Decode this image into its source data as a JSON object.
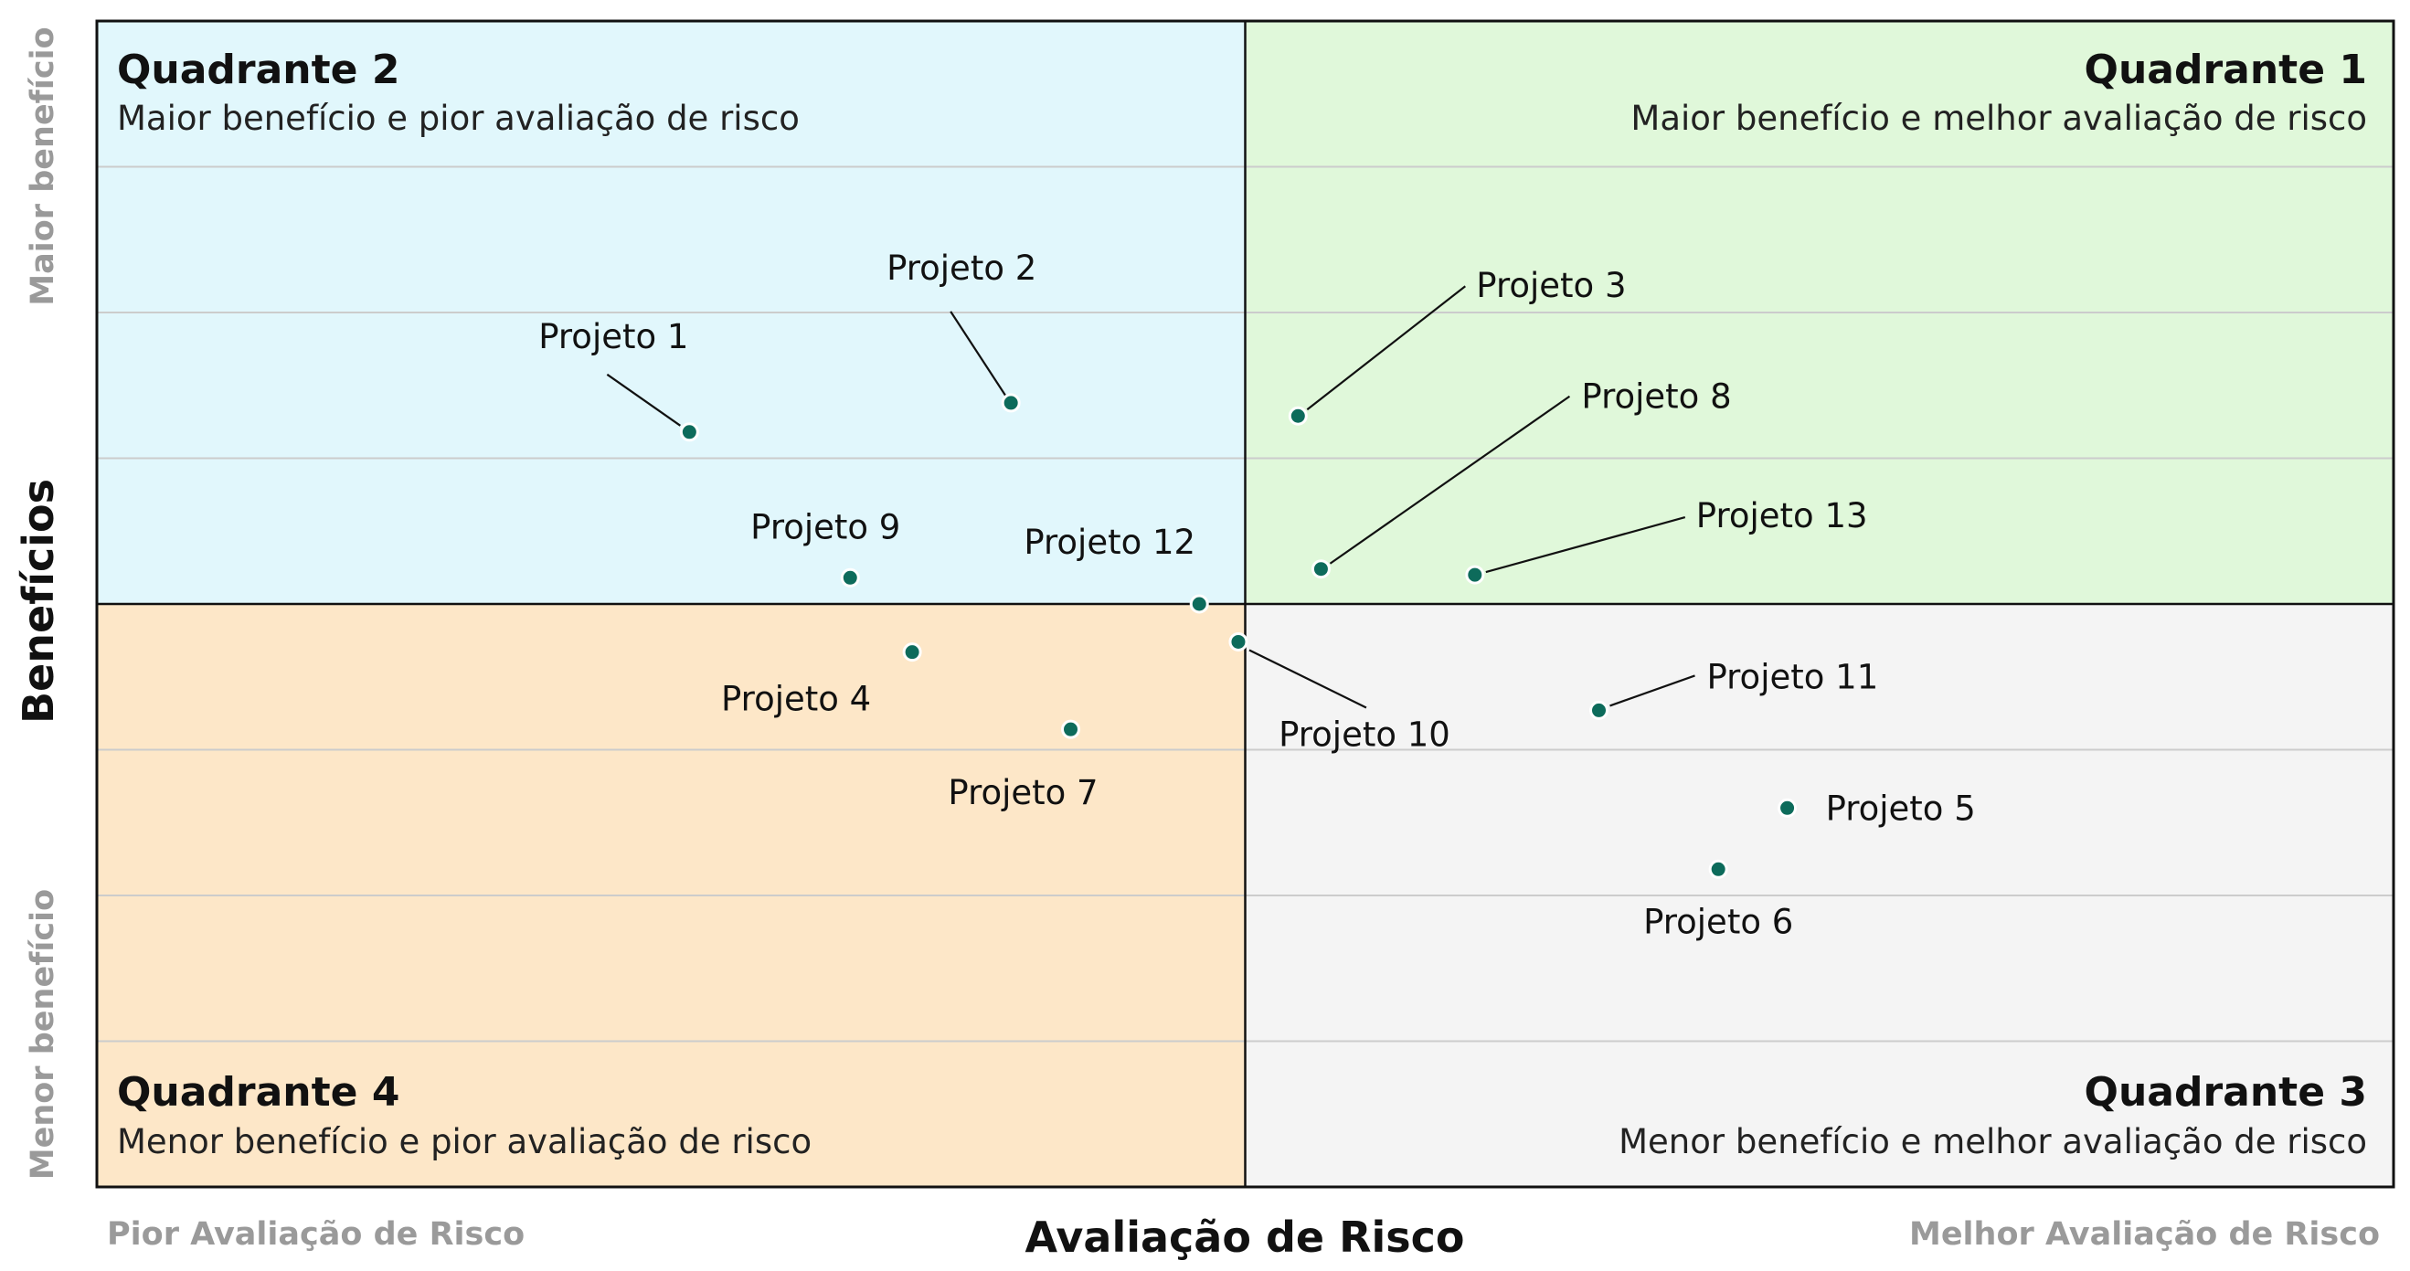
{
  "chart_data": {
    "type": "scatter",
    "xlabel": "Avaliação de Risco",
    "ylabel": "Benefícios",
    "x_low_label": "Pior Avaliação de Risco",
    "x_high_label": "Melhor Avaliação de Risco",
    "y_low_label": "Menor benefício",
    "y_high_label": "Maior benefício",
    "xlim": [
      0,
      10
    ],
    "ylim": [
      0,
      8
    ],
    "x_split": 5,
    "y_split": 4,
    "grid": "horizontal",
    "colors": {
      "q1": "#e0f8da",
      "q2": "#e1f7fc",
      "q3": "#f4f4f4",
      "q4": "#fde7c8",
      "point": "#0d6b5b",
      "frame": "#111111",
      "grid": "#cccccc"
    },
    "quadrants": [
      {
        "id": "q1",
        "title": "Quadrante 1",
        "desc": "Maior benefício e melhor avaliação de risco"
      },
      {
        "id": "q2",
        "title": "Quadrante 2",
        "desc": "Maior benefício e pior avaliação de risco"
      },
      {
        "id": "q3",
        "title": "Quadrante 3",
        "desc": "Menor benefício e melhor avaliação de risco"
      },
      {
        "id": "q4",
        "title": "Quadrante 4",
        "desc": "Menor benefício e pior avaliação de risco"
      }
    ],
    "points": [
      {
        "name": "Projeto 1",
        "x": 2.58,
        "y": 5.18
      },
      {
        "name": "Projeto 2",
        "x": 3.98,
        "y": 5.38
      },
      {
        "name": "Projeto 3",
        "x": 5.23,
        "y": 5.29
      },
      {
        "name": "Projeto 4",
        "x": 3.55,
        "y": 3.67
      },
      {
        "name": "Projeto 5",
        "x": 7.36,
        "y": 2.6
      },
      {
        "name": "Projeto 6",
        "x": 7.06,
        "y": 2.18
      },
      {
        "name": "Projeto 7",
        "x": 4.24,
        "y": 3.14
      },
      {
        "name": "Projeto 8",
        "x": 5.33,
        "y": 4.24
      },
      {
        "name": "Projeto 9",
        "x": 3.28,
        "y": 4.18
      },
      {
        "name": "Projeto 10",
        "x": 4.97,
        "y": 3.74
      },
      {
        "name": "Projeto 11",
        "x": 6.54,
        "y": 3.27
      },
      {
        "name": "Projeto 12",
        "x": 4.8,
        "y": 4.0
      },
      {
        "name": "Projeto 13",
        "x": 6.0,
        "y": 4.2
      }
    ]
  }
}
